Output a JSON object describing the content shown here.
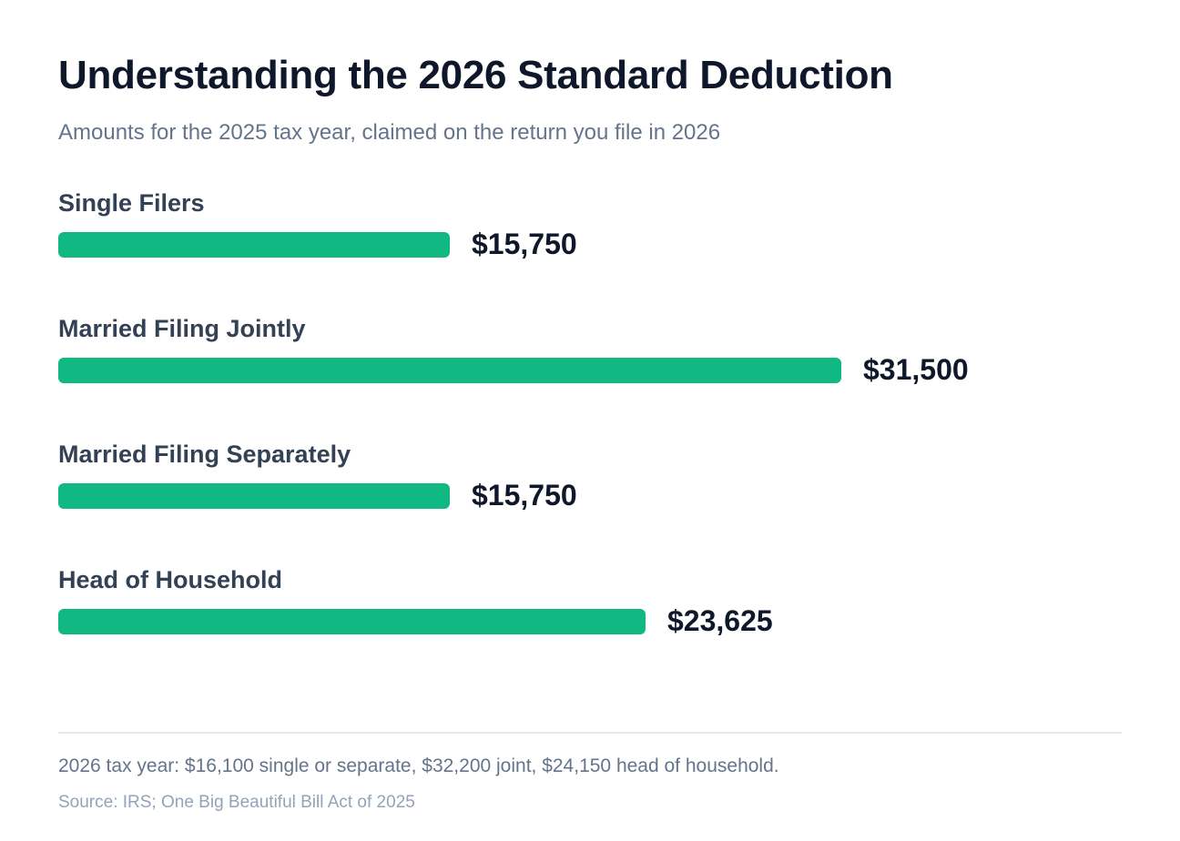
{
  "chart_data": {
    "type": "bar",
    "orientation": "horizontal",
    "title": "Understanding the 2026 Standard Deduction",
    "subtitle": "Amounts for the 2025 tax year, claimed on the return you file in 2026",
    "categories": [
      "Single Filers",
      "Married Filing Jointly",
      "Married Filing Separately",
      "Head of Household"
    ],
    "values": [
      15750,
      31500,
      15750,
      23625
    ],
    "value_labels": [
      "$15,750",
      "$31,500",
      "$15,750",
      "$23,625"
    ],
    "xlim": [
      0,
      31500
    ],
    "grid": false,
    "bar_color": "#10b981"
  },
  "footer": {
    "note": "2026 tax year: $16,100 single or separate, $32,200 joint, $24,150 head of household.",
    "source": "Source: IRS; One Big Beautiful Bill Act of 2025"
  }
}
